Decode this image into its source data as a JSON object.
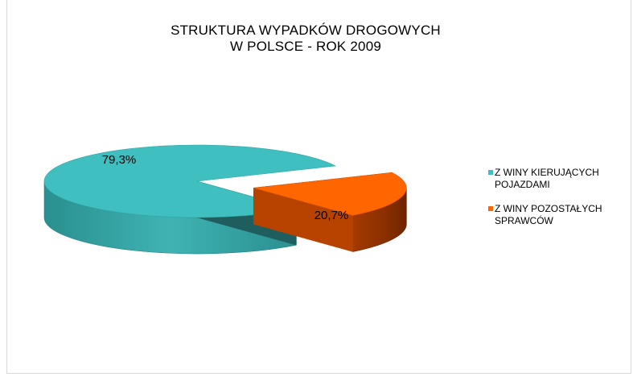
{
  "chart_data": {
    "type": "pie",
    "title_lines": [
      "STRUKTURA WYPADKÓW DROGOWYCH",
      "W POLSCE - ROK 2009"
    ],
    "categories": [
      "Z WINY KIERUJĄCYCH POJAZDAMI",
      "Z WINY POZOSTAŁYCH SPRAWCÓW"
    ],
    "values": [
      79.3,
      20.7
    ],
    "data_labels": [
      "79,3%",
      "20,7%"
    ],
    "legend_lines": [
      [
        "Z WINY KIERUJĄCYCH",
        "POJAZDAMI"
      ],
      [
        "Z WINY POZOSTAŁYCH",
        "SPRAWCÓW"
      ]
    ],
    "colors": [
      "#3fbfbf",
      "#ff6600"
    ],
    "legend_placement": "right",
    "style": "3d-exploded"
  }
}
